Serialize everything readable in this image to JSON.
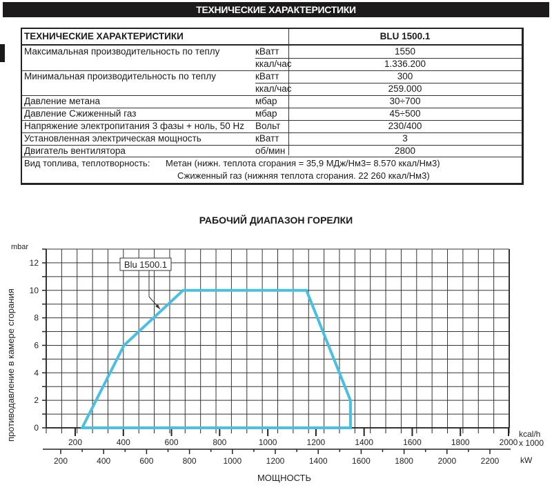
{
  "banner": {
    "title": "ТЕХНИЧЕСКИЕ ХАРАКТЕРИСТИКИ"
  },
  "spec_table": {
    "header": {
      "label": "ТЕХНИЧЕСКИЕ ХАРАКТЕРИСТИКИ",
      "model": "BLU 1500.1"
    },
    "rows": [
      {
        "label": "Максимальная производительность по теплу",
        "unit": "кВатт",
        "value": "1550"
      },
      {
        "label": "",
        "unit": "ккал/час",
        "value": "1.336.200"
      },
      {
        "label": "Минимальная производительность по теплу",
        "unit": "кВатт",
        "value": "300"
      },
      {
        "label": "",
        "unit": "ккал/час",
        "value": "259.000"
      },
      {
        "label": "Давление метана",
        "unit": "мбар",
        "value": "30÷700"
      },
      {
        "label": "Давление Сжиженный газ",
        "unit": "мбар",
        "value": "45÷500"
      },
      {
        "label": "Напряжение электропитания  3 фазы + ноль, 50 Hz",
        "unit": "Вольт",
        "value": "230/400"
      },
      {
        "label": "Установленная электрическая мощность",
        "unit": "кВатт",
        "value": "3"
      },
      {
        "label": "Двигатель вентилятора",
        "unit": "об/мин",
        "value": "2800"
      }
    ],
    "fuel": {
      "label": "Вид топлива, теплотворность:",
      "line1": "Метан (нижн. теплота сгорания  = 35,9 МДж/Нм3= 8.570 ккал/Нм3)",
      "line2": "Сжиженный газ  (нижняя теплота сгорания. 22 260 ккал/Нм3)"
    }
  },
  "chart": {
    "title": "РАБОЧИЙ ДИАПАЗОН ГОРЕЛКИ",
    "y_unit": "mbar",
    "y_label": "противодавление в камере сгорания",
    "x_label": "МОЩНОСТЬ",
    "x_top_unit_1": "kcal/h",
    "x_top_unit_2": "x 1000",
    "x_bottom_unit": "kW",
    "legend_box": "Blu 1500.1",
    "line_color": "#4bbfe0"
  },
  "chart_data": {
    "type": "line",
    "title": "РАБОЧИЙ ДИАПАЗОН ГОРЕЛКИ",
    "xlabel": "МОЩНОСТЬ (kW / kcal/h x 1000)",
    "ylabel": "противодавление в камере сгорания (mbar)",
    "ylim": [
      0,
      13
    ],
    "y_ticks": [
      0,
      2,
      4,
      6,
      8,
      10,
      12
    ],
    "x_top_ticks_kcal_h_x1000": [
      200,
      400,
      600,
      800,
      1000,
      1200,
      1400,
      1600,
      1800,
      2000
    ],
    "x_bottom_ticks_kW": [
      200,
      400,
      600,
      800,
      1000,
      1200,
      1400,
      1600,
      1800,
      2000,
      2200
    ],
    "grid": true,
    "series": [
      {
        "name": "Blu 1500.1",
        "closed_polygon": true,
        "x_kW": [
          300,
          495,
          770,
          1345,
          1550,
          1550,
          300
        ],
        "y_mbar": [
          0,
          6,
          10,
          10,
          2,
          0,
          0
        ]
      }
    ]
  }
}
